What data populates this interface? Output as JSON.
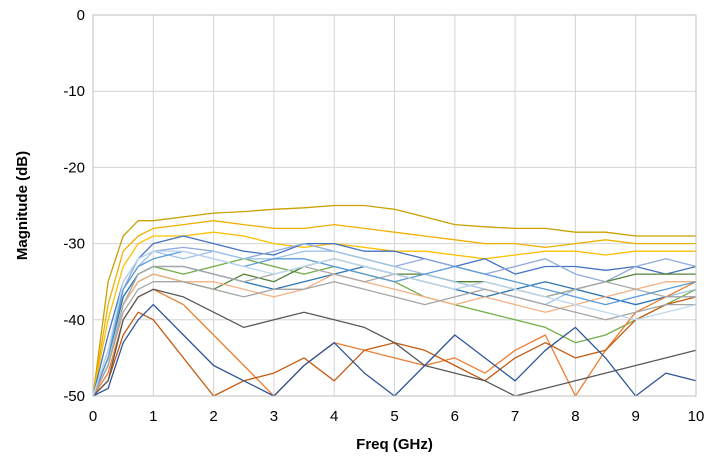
{
  "chart_data": {
    "type": "line",
    "title": "",
    "xlabel": "Freq (GHz)",
    "ylabel": "Magnitude (dB)",
    "xlim": [
      0,
      10
    ],
    "ylim": [
      -50,
      0
    ],
    "x_ticks": [
      0,
      1,
      2,
      3,
      4,
      5,
      6,
      7,
      8,
      9,
      10
    ],
    "y_ticks": [
      0,
      -10,
      -20,
      -30,
      -40,
      -50
    ],
    "x_tick_labels": [
      "0",
      "1",
      "2",
      "3",
      "4",
      "5",
      "6",
      "7",
      "8",
      "9",
      "10"
    ],
    "y_tick_labels": [
      "0",
      "-10",
      "-20",
      "-30",
      "-40",
      "-50"
    ],
    "grid": true,
    "legend": "none",
    "x": [
      0,
      0.25,
      0.5,
      0.75,
      1,
      1.5,
      2,
      2.5,
      3,
      3.5,
      4,
      4.5,
      5,
      5.5,
      6,
      6.5,
      7,
      7.5,
      8,
      8.5,
      9,
      9.5,
      10
    ],
    "series": [
      {
        "color": "#c9a000",
        "values": [
          -50,
          -35,
          -29,
          -27,
          -27,
          -26.5,
          -26,
          -25.8,
          -25.5,
          -25.3,
          -25,
          -25,
          -25.5,
          -26.5,
          -27.5,
          -27.8,
          -28,
          -28,
          -28.5,
          -28.5,
          -29,
          -29,
          -29
        ]
      },
      {
        "color": "#f0b000",
        "values": [
          -50,
          -38,
          -31,
          -29,
          -28,
          -27.5,
          -27,
          -27.5,
          -28,
          -28,
          -27.5,
          -28,
          -28.5,
          -29,
          -29.5,
          -30,
          -30,
          -30.5,
          -30,
          -29.5,
          -30,
          -30,
          -30
        ]
      },
      {
        "color": "#ffc000",
        "values": [
          -50,
          -40,
          -33,
          -30,
          -29,
          -29,
          -28.5,
          -29,
          -30,
          -30.5,
          -30,
          -30.5,
          -31,
          -31,
          -31.5,
          -32,
          -31.5,
          -31,
          -31,
          -31.5,
          -31,
          -31,
          -31
        ]
      },
      {
        "color": "#4472c4",
        "values": [
          -50,
          -42,
          -35,
          -32,
          -30,
          -29,
          -30,
          -31,
          -31.5,
          -30,
          -30,
          -31,
          -31,
          -32,
          -33,
          -32,
          -34,
          -33,
          -33,
          -33.5,
          -33,
          -34,
          -33
        ]
      },
      {
        "color": "#8faadc",
        "values": [
          -50,
          -44,
          -36,
          -32,
          -31,
          -30.5,
          -31,
          -32,
          -31,
          -30,
          -31,
          -32,
          -33,
          -32,
          -33,
          -34,
          -33,
          -32,
          -34,
          -35,
          -33,
          -32,
          -33
        ]
      },
      {
        "color": "#70ad47",
        "values": [
          -50,
          -45,
          -37,
          -34,
          -33,
          -34,
          -33,
          -32,
          -33,
          -34,
          -33,
          -34,
          -35,
          -37,
          -38,
          -39,
          -40,
          -41,
          -43,
          -42,
          -40,
          -38,
          -36
        ]
      },
      {
        "color": "#548235",
        "values": [
          -50,
          -46,
          -38,
          -35,
          -34,
          -35,
          -36,
          -34,
          -35,
          -33,
          -32,
          -33,
          -34,
          -34,
          -35,
          -35,
          -36,
          -37,
          -36,
          -35,
          -34,
          -34,
          -34
        ]
      },
      {
        "color": "#9dc3e6",
        "values": [
          -50,
          -44,
          -36,
          -33,
          -31,
          -32,
          -31,
          -32,
          -32,
          -31,
          -31,
          -32,
          -33,
          -34,
          -35,
          -36,
          -37,
          -38,
          -36,
          -37,
          -38,
          -37,
          -36
        ]
      },
      {
        "color": "#2e75b6",
        "values": [
          -50,
          -45,
          -37,
          -34,
          -33,
          -33,
          -34,
          -35,
          -36,
          -35,
          -34,
          -33,
          -34,
          -35,
          -36,
          -37,
          -36,
          -35,
          -36,
          -37,
          -38,
          -37,
          -37
        ]
      },
      {
        "color": "#f4b183",
        "values": [
          -50,
          -46,
          -38,
          -35,
          -34,
          -35,
          -35,
          -36,
          -37,
          -36,
          -34,
          -35,
          -36,
          -37,
          -38,
          -37,
          -38,
          -39,
          -38,
          -37,
          -36,
          -35,
          -35
        ]
      },
      {
        "color": "#ed7d31",
        "values": [
          -50,
          -47,
          -40,
          -37,
          -36,
          -38,
          -42,
          -46,
          -50,
          -46,
          -43,
          -44,
          -45,
          -46,
          -45,
          -47,
          -44,
          -42,
          -50,
          -44,
          -39,
          -37,
          -35
        ]
      },
      {
        "color": "#c55a11",
        "values": [
          -50,
          -48,
          -42,
          -39,
          -40,
          -45,
          -50,
          -48,
          -47,
          -45,
          -48,
          -44,
          -43,
          -44,
          -46,
          -48,
          -45,
          -43,
          -45,
          -44,
          -40,
          -38,
          -37
        ]
      },
      {
        "color": "#a9a9a9",
        "values": [
          -50,
          -46,
          -38,
          -34,
          -33,
          -33,
          -34,
          -35,
          -34,
          -33,
          -34,
          -35,
          -34,
          -35,
          -36,
          -35,
          -36,
          -37,
          -36,
          -35,
          -36,
          -37,
          -37
        ]
      },
      {
        "color": "#595959",
        "values": [
          -50,
          -48,
          -40,
          -37,
          -36,
          -37,
          -39,
          -41,
          -40,
          -39,
          -40,
          -41,
          -43,
          -46,
          -47,
          -48,
          -50,
          -49,
          -48,
          -47,
          -46,
          -45,
          -44
        ]
      },
      {
        "color": "#2f5597",
        "values": [
          -50,
          -49,
          -43,
          -40,
          -38,
          -42,
          -46,
          -48,
          -50,
          -46,
          -43,
          -47,
          -50,
          -46,
          -42,
          -45,
          -48,
          -44,
          -41,
          -45,
          -50,
          -47,
          -48
        ]
      },
      {
        "color": "#5b9bd5",
        "values": [
          -50,
          -45,
          -36,
          -33,
          -32,
          -31,
          -32,
          -33,
          -32,
          -32,
          -33,
          -34,
          -35,
          -34,
          -33,
          -34,
          -35,
          -36,
          -37,
          -38,
          -37,
          -36,
          -35
        ]
      },
      {
        "color": "#a5a5a5",
        "values": [
          -50,
          -46,
          -39,
          -36,
          -35,
          -35,
          -36,
          -37,
          -36,
          -36,
          -35,
          -36,
          -37,
          -38,
          -37,
          -36,
          -37,
          -38,
          -39,
          -40,
          -39,
          -38,
          -38
        ]
      },
      {
        "color": "#bdd7ee",
        "values": [
          -50,
          -44,
          -35,
          -32,
          -31,
          -31,
          -32,
          -33,
          -34,
          -33,
          -32,
          -33,
          -34,
          -35,
          -36,
          -35,
          -36,
          -37,
          -38,
          -39,
          -40,
          -39,
          -38
        ]
      }
    ]
  }
}
